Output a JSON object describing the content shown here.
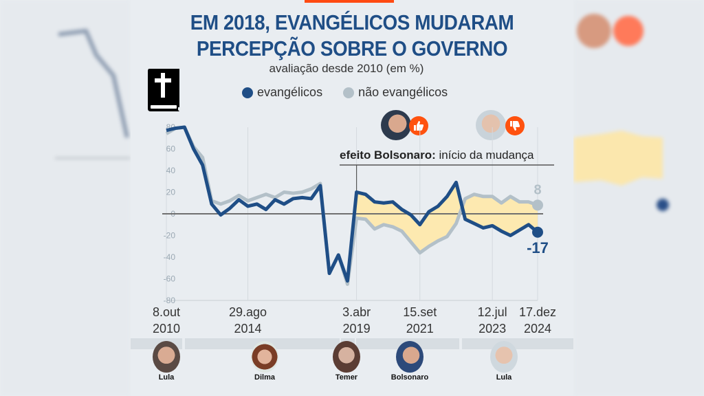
{
  "title_lines": [
    "EM 2018, EVANGÉLICOS MUDARAM",
    "PERCEPÇÃO SOBRE O GOVERNO"
  ],
  "subtitle": "avaliação desde 2010 (em %)",
  "legend": [
    {
      "label": "evangélicos",
      "color": "#1f4e86"
    },
    {
      "label": "não evangélicos",
      "color": "#b3c0c8"
    }
  ],
  "annotation": {
    "bold": "efeito Bolsonaro:",
    "rest": " início da mudança"
  },
  "end_labels": {
    "nao_evangelicos": "8",
    "evangelicos": "-17"
  },
  "x_labels": [
    {
      "day": "8.out",
      "year": "2010"
    },
    {
      "day": "29.ago",
      "year": "2014"
    },
    {
      "day": "3.abr",
      "year": "2019"
    },
    {
      "day": "15.set",
      "year": "2021"
    },
    {
      "day": "12.jul",
      "year": "2023"
    },
    {
      "day": "17.dez",
      "year": "2024"
    }
  ],
  "presidents": [
    {
      "name": "Lula",
      "color": "#b98a74"
    },
    {
      "name": "Dilma",
      "color": "#a9735c"
    },
    {
      "name": "Temer",
      "color": "#8f7466"
    },
    {
      "name": "Bolsonaro",
      "color": "#a47f6b"
    },
    {
      "name": "Lula",
      "color": "#c9a493"
    }
  ],
  "icons": {
    "bible": "bible-icon",
    "thumbs_up": "thumbs-up-icon",
    "thumbs_down": "thumbs-down-icon"
  },
  "colors": {
    "accent": "#ff4a12",
    "evangelicos": "#1f4e86",
    "nao_evangelicos": "#b3c0c8",
    "fill": "#fde9b0"
  },
  "chart_data": {
    "type": "line",
    "title": "EM 2018, EVANGÉLICOS MUDARAM PERCEPÇÃO SOBRE O GOVERNO",
    "subtitle": "avaliação desde 2010 (em %)",
    "ylim": [
      -80,
      80
    ],
    "yticks": [
      "80",
      "60",
      "40",
      "20",
      "0",
      "-20",
      "-40",
      "-60",
      "-80"
    ],
    "ytick_values": [
      80,
      60,
      40,
      20,
      0,
      -20,
      -40,
      -60,
      -80
    ],
    "x_index_labels": {
      "0": "8.out 2010",
      "9": "29.ago 2014",
      "21": "3.abr 2019",
      "28": "15.set 2021",
      "36": "12.jul 2023",
      "41": "17.dez 2024"
    },
    "fill_from_index": 21,
    "series": [
      {
        "name": "não evangélicos",
        "values": [
          74,
          79,
          80,
          62,
          52,
          12,
          9,
          12,
          17,
          12,
          15,
          18,
          15,
          20,
          19,
          20,
          23,
          28,
          -55,
          -38,
          -65,
          -4,
          -5,
          -14,
          -10,
          -12,
          -16,
          -26,
          -36,
          -30,
          -25,
          -21,
          -9,
          14,
          18,
          16,
          16,
          10,
          16,
          11,
          11,
          8
        ]
      },
      {
        "name": "evangélicos",
        "values": [
          77,
          79,
          80,
          60,
          45,
          9,
          -1,
          5,
          13,
          7,
          9,
          4,
          13,
          9,
          14,
          15,
          14,
          26,
          -55,
          -38,
          -62,
          20,
          18,
          11,
          10,
          11,
          4,
          -1,
          -10,
          2,
          7,
          16,
          29,
          -5,
          -9,
          -13,
          -11,
          -16,
          -20,
          -15,
          -10,
          -17
        ]
      }
    ]
  }
}
